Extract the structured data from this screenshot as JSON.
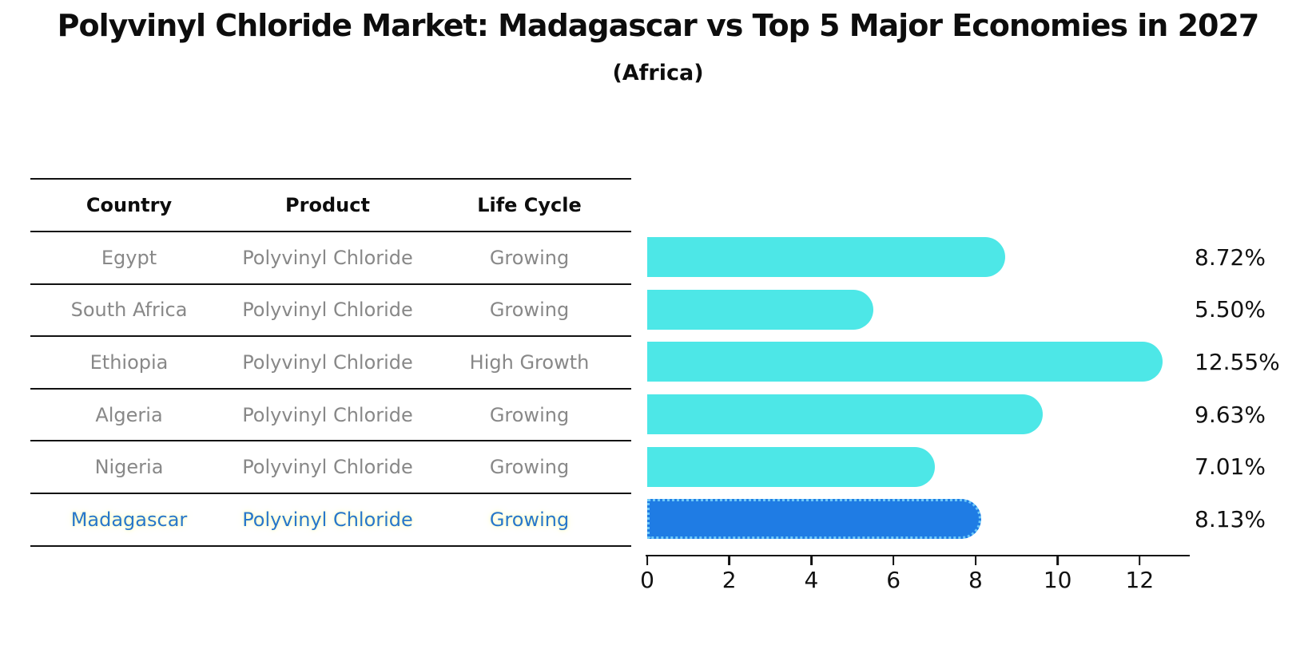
{
  "title": "Polyvinyl Chloride Market: Madagascar vs Top 5 Major Economies in 2027",
  "subtitle": "(Africa)",
  "table": {
    "headers": [
      "Country",
      "Product",
      "Life Cycle"
    ],
    "rows": [
      {
        "country": "Egypt",
        "product": "Polyvinyl Chloride",
        "life_cycle": "Growing"
      },
      {
        "country": "South Africa",
        "product": "Polyvinyl Chloride",
        "life_cycle": "Growing"
      },
      {
        "country": "Ethiopia",
        "product": "Polyvinyl Chloride",
        "life_cycle": "High Growth"
      },
      {
        "country": "Algeria",
        "product": "Polyvinyl Chloride",
        "life_cycle": "Growing"
      },
      {
        "country": "Nigeria",
        "product": "Polyvinyl Chloride",
        "life_cycle": "Growing"
      },
      {
        "country": "Madagascar",
        "product": "Polyvinyl Chloride",
        "life_cycle": "Growing"
      }
    ],
    "highlighted_row": "Madagascar"
  },
  "chart_data": {
    "type": "bar",
    "orientation": "horizontal",
    "categories": [
      "Egypt",
      "South Africa",
      "Ethiopia",
      "Algeria",
      "Nigeria",
      "Madagascar"
    ],
    "values": [
      8.72,
      5.5,
      12.55,
      9.63,
      7.01,
      8.13
    ],
    "labels": [
      "8.72%",
      "5.50%",
      "12.55%",
      "9.63%",
      "7.01%",
      "8.13%"
    ],
    "x_ticks": [
      0,
      2,
      4,
      6,
      8,
      10,
      12
    ],
    "tick_labels": [
      "0",
      "2",
      "4",
      "6",
      "8",
      "10",
      "12"
    ],
    "xlim": [
      0,
      13.18
    ],
    "grid": false,
    "legend": false,
    "highlight_index": 5,
    "bar_color": "#4DE7E7",
    "highlight_bar_color": "#1F7CE4",
    "highlight_border_color": "#6EC9F8",
    "highlight_text_color": "#2878CB",
    "muted_text_color": "#888888"
  }
}
